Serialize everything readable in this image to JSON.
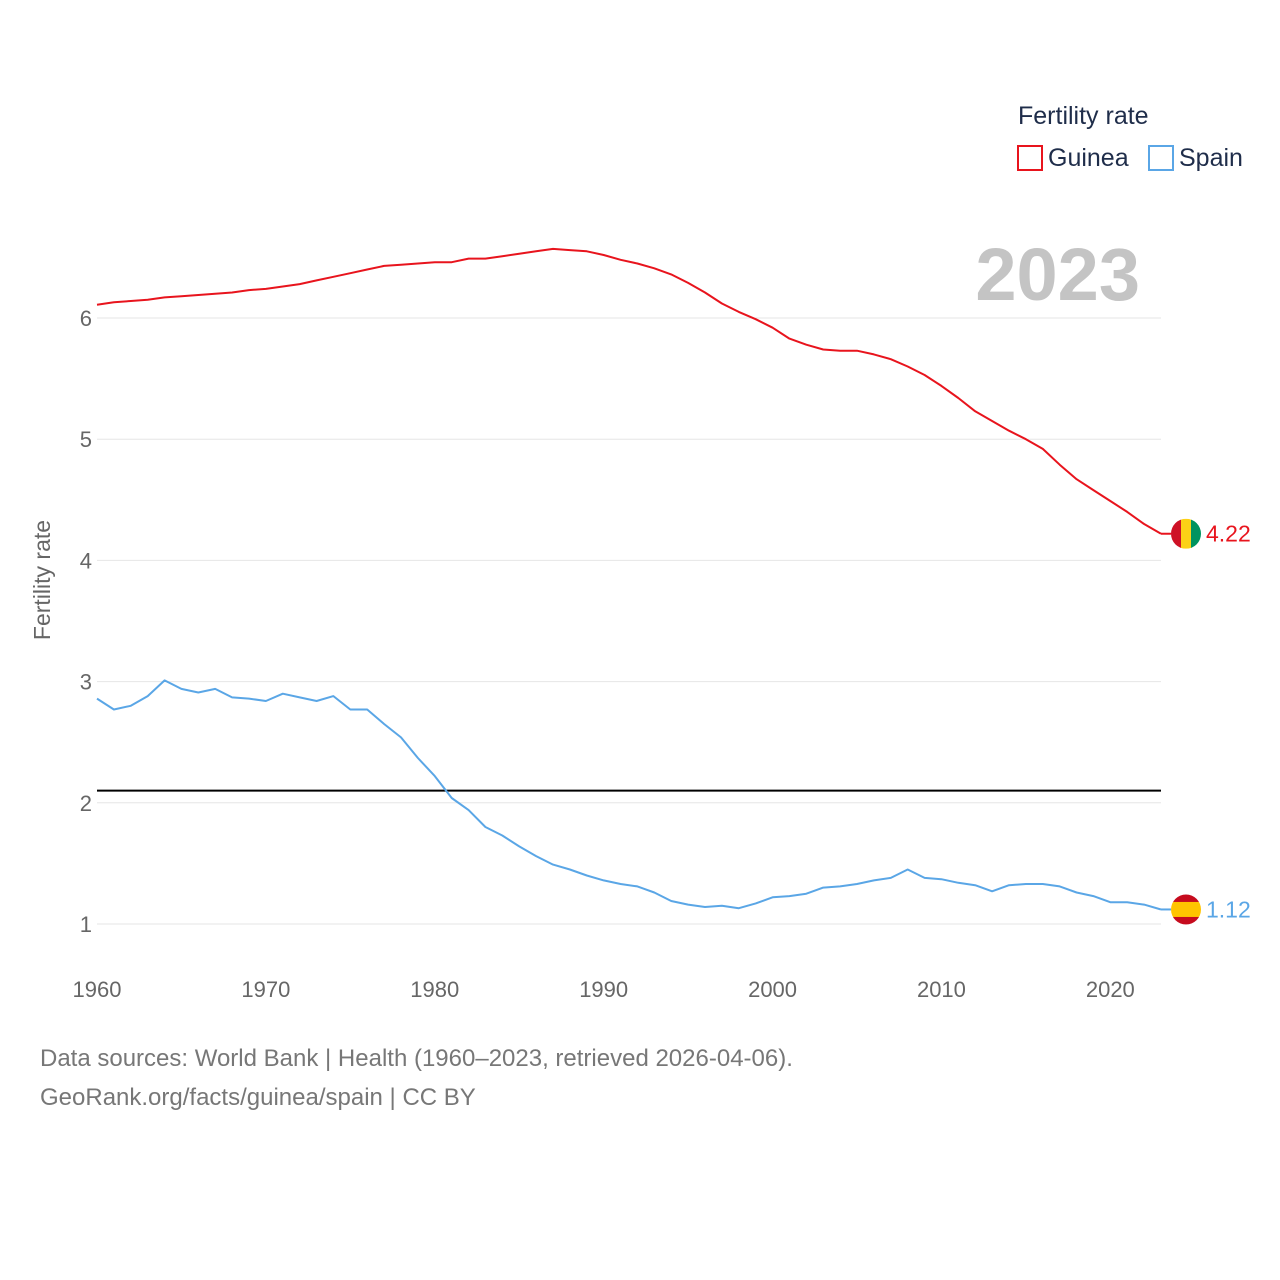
{
  "chart_data": {
    "type": "line",
    "title": "",
    "ylabel": "Fertility rate",
    "xlabel": "",
    "current_year": "2023",
    "legend": {
      "title": "Fertility rate",
      "placement": "top-right"
    },
    "xlim": [
      1960,
      2023
    ],
    "ylim": [
      0.7,
      7.2
    ],
    "x_ticks": [
      1960,
      1970,
      1980,
      1990,
      2000,
      2010,
      2020
    ],
    "y_ticks": [
      1,
      2,
      3,
      4,
      5,
      6
    ],
    "reference_line": {
      "value": 2.1,
      "color": "#000000"
    },
    "x": [
      1960,
      1961,
      1962,
      1963,
      1964,
      1965,
      1966,
      1967,
      1968,
      1969,
      1970,
      1971,
      1972,
      1973,
      1974,
      1975,
      1976,
      1977,
      1978,
      1979,
      1980,
      1981,
      1982,
      1983,
      1984,
      1985,
      1986,
      1987,
      1988,
      1989,
      1990,
      1991,
      1992,
      1993,
      1994,
      1995,
      1996,
      1997,
      1998,
      1999,
      2000,
      2001,
      2002,
      2003,
      2004,
      2005,
      2006,
      2007,
      2008,
      2009,
      2010,
      2011,
      2012,
      2013,
      2014,
      2015,
      2016,
      2017,
      2018,
      2019,
      2020,
      2021,
      2022,
      2023
    ],
    "series": [
      {
        "name": "Guinea",
        "color": "#e8141d",
        "flag": [
          "#ce1126",
          "#fcd116",
          "#009460"
        ],
        "end_label": "4.22",
        "values": [
          6.11,
          6.13,
          6.14,
          6.15,
          6.17,
          6.18,
          6.19,
          6.2,
          6.21,
          6.23,
          6.24,
          6.26,
          6.28,
          6.31,
          6.34,
          6.37,
          6.4,
          6.43,
          6.44,
          6.45,
          6.46,
          6.46,
          6.49,
          6.49,
          6.51,
          6.53,
          6.55,
          6.57,
          6.56,
          6.55,
          6.52,
          6.48,
          6.45,
          6.41,
          6.36,
          6.29,
          6.21,
          6.12,
          6.05,
          5.99,
          5.92,
          5.83,
          5.78,
          5.74,
          5.73,
          5.73,
          5.7,
          5.66,
          5.6,
          5.53,
          5.44,
          5.34,
          5.23,
          5.15,
          5.07,
          5.0,
          4.92,
          4.79,
          4.67,
          4.58,
          4.49,
          4.4,
          4.3,
          4.22
        ]
      },
      {
        "name": "Spain",
        "color": "#5aa6e6",
        "flag": [
          "#c60b1e",
          "#ffc400",
          "#c60b1e"
        ],
        "end_label": "1.12",
        "values": [
          2.86,
          2.77,
          2.8,
          2.88,
          3.01,
          2.94,
          2.91,
          2.94,
          2.87,
          2.86,
          2.84,
          2.9,
          2.87,
          2.84,
          2.88,
          2.77,
          2.77,
          2.65,
          2.54,
          2.37,
          2.22,
          2.04,
          1.94,
          1.8,
          1.73,
          1.64,
          1.56,
          1.49,
          1.45,
          1.4,
          1.36,
          1.33,
          1.31,
          1.26,
          1.19,
          1.16,
          1.14,
          1.15,
          1.13,
          1.17,
          1.22,
          1.23,
          1.25,
          1.3,
          1.31,
          1.33,
          1.36,
          1.38,
          1.45,
          1.38,
          1.37,
          1.34,
          1.32,
          1.27,
          1.32,
          1.33,
          1.33,
          1.31,
          1.26,
          1.23,
          1.18,
          1.18,
          1.16,
          1.12
        ]
      }
    ]
  },
  "footer": {
    "sources": "Data sources: World Bank | Health (1960–2023, retrieved 2026-04-06).",
    "credit": "GeoRank.org/facts/guinea/spain | CC BY"
  }
}
